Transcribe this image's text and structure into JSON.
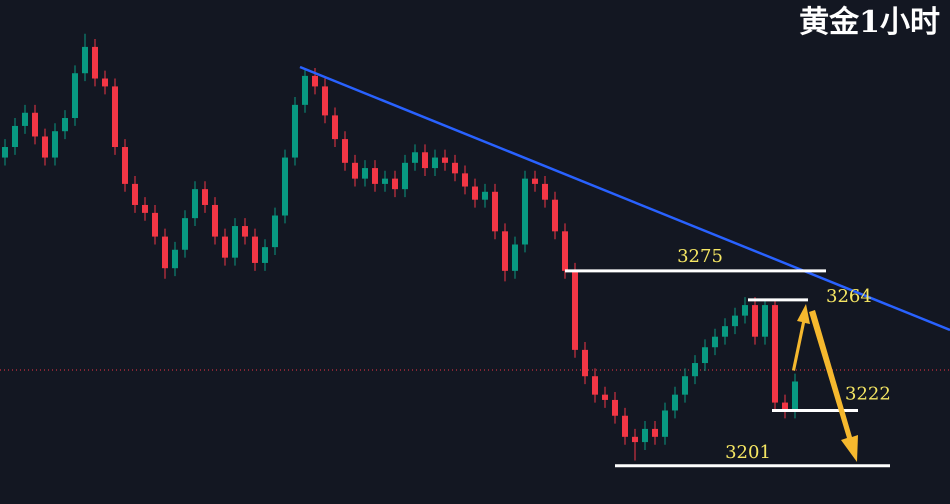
{
  "chart_data": {
    "type": "candlestick",
    "title": "黄金1小时",
    "ylim": [
      3186.5,
      3377.8
    ],
    "up_color": "#089981",
    "down_color": "#f23645",
    "open": [
      3318,
      3322,
      3330,
      3335,
      3326,
      3318,
      3328,
      3333,
      3350,
      3360,
      3348,
      3345,
      3322,
      3308,
      3300,
      3297,
      3288,
      3276,
      3283,
      3295,
      3306,
      3300,
      3288,
      3280,
      3292,
      3288,
      3278,
      3284,
      3296,
      3318,
      3338,
      3349,
      3345,
      3334,
      3325,
      3316,
      3310,
      3314,
      3308,
      3310,
      3306,
      3316,
      3320,
      3314,
      3318,
      3316,
      3312,
      3307,
      3302,
      3305,
      3290,
      3275,
      3285,
      3310,
      3308,
      3302,
      3290,
      3275,
      3245,
      3235,
      3228,
      3226,
      3220,
      3212,
      3210,
      3215,
      3212,
      3222,
      3228,
      3235,
      3240,
      3246,
      3250,
      3254,
      3258,
      3262,
      3250,
      3262,
      3225,
      3222
    ],
    "high": [
      3325,
      3333,
      3338,
      3338,
      3329,
      3331,
      3336,
      3353,
      3365,
      3363,
      3351,
      3348,
      3325,
      3311,
      3303,
      3300,
      3291,
      3286,
      3298,
      3309,
      3309,
      3303,
      3291,
      3295,
      3295,
      3291,
      3287,
      3299,
      3321,
      3341,
      3352,
      3352,
      3348,
      3337,
      3328,
      3319,
      3317,
      3317,
      3313,
      3313,
      3319,
      3323,
      3323,
      3321,
      3321,
      3319,
      3315,
      3310,
      3308,
      3308,
      3293,
      3288,
      3313,
      3313,
      3311,
      3305,
      3293,
      3278,
      3248,
      3238,
      3231,
      3229,
      3223,
      3215,
      3218,
      3218,
      3225,
      3231,
      3238,
      3243,
      3249,
      3253,
      3257,
      3261,
      3265,
      3265,
      3264,
      3264,
      3228,
      3236
    ],
    "low": [
      3315,
      3319,
      3327,
      3323,
      3315,
      3315,
      3325,
      3330,
      3347,
      3345,
      3342,
      3319,
      3305,
      3297,
      3294,
      3285,
      3272,
      3273,
      3280,
      3292,
      3297,
      3285,
      3277,
      3277,
      3285,
      3275,
      3275,
      3281,
      3293,
      3315,
      3335,
      3342,
      3331,
      3322,
      3313,
      3307,
      3307,
      3305,
      3305,
      3303,
      3303,
      3313,
      3311,
      3311,
      3313,
      3309,
      3304,
      3299,
      3299,
      3287,
      3271,
      3272,
      3282,
      3305,
      3299,
      3287,
      3272,
      3242,
      3232,
      3225,
      3223,
      3217,
      3209,
      3203,
      3207,
      3209,
      3209,
      3219,
      3225,
      3232,
      3237,
      3243,
      3247,
      3251,
      3255,
      3247,
      3247,
      3222,
      3219,
      3219
    ],
    "close": [
      3322,
      3330,
      3335,
      3326,
      3318,
      3328,
      3333,
      3350,
      3360,
      3348,
      3345,
      3322,
      3308,
      3300,
      3297,
      3288,
      3276,
      3283,
      3295,
      3306,
      3300,
      3288,
      3280,
      3292,
      3288,
      3278,
      3284,
      3296,
      3318,
      3338,
      3349,
      3345,
      3334,
      3325,
      3316,
      3310,
      3314,
      3308,
      3310,
      3306,
      3316,
      3320,
      3314,
      3318,
      3316,
      3312,
      3307,
      3302,
      3305,
      3290,
      3275,
      3285,
      3310,
      3308,
      3302,
      3290,
      3275,
      3245,
      3235,
      3228,
      3226,
      3220,
      3212,
      3210,
      3215,
      3212,
      3222,
      3228,
      3235,
      3240,
      3246,
      3250,
      3254,
      3258,
      3262,
      3250,
      3262,
      3225,
      3222,
      3233
    ],
    "levels": [
      3275,
      3264,
      3222,
      3201
    ]
  }
}
